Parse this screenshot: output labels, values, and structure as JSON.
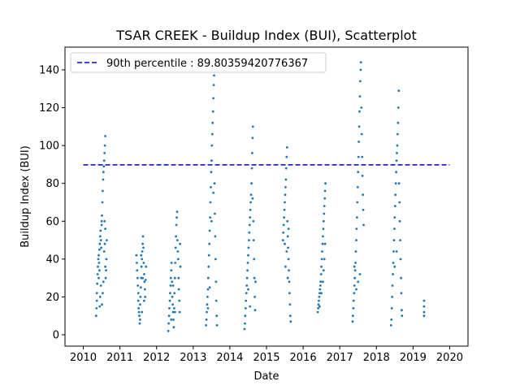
{
  "chart_data": {
    "type": "scatter",
    "title": "TSAR CREEK - Buildup Index (BUI), Scatterplot",
    "xlabel": "Date",
    "ylabel": "Buildup Index (BUI)",
    "xlim": [
      2009.5,
      2020.5
    ],
    "ylim": [
      -6,
      152
    ],
    "x_ticks": [
      "2010",
      "2011",
      "2012",
      "2013",
      "2014",
      "2015",
      "2016",
      "2017",
      "2018",
      "2019",
      "2020"
    ],
    "y_ticks": [
      0,
      20,
      40,
      60,
      80,
      100,
      120,
      140
    ],
    "grid": false,
    "legend_position": "top-left",
    "series_color": "#1f77b4",
    "reference_line": {
      "label": "90th percentile : 89.80359420776367",
      "value": 89.80359420776367,
      "color": "#0000cd",
      "style": "dashed"
    },
    "series": [
      {
        "points": [
          [
            2010.35,
            10
          ],
          [
            2010.36,
            14
          ],
          [
            2010.37,
            18
          ],
          [
            2010.37,
            22
          ],
          [
            2010.38,
            27
          ],
          [
            2010.39,
            32
          ],
          [
            2010.4,
            36
          ],
          [
            2010.41,
            40
          ],
          [
            2010.42,
            42
          ],
          [
            2010.43,
            38
          ],
          [
            2010.44,
            45
          ],
          [
            2010.45,
            48
          ],
          [
            2010.46,
            52
          ],
          [
            2010.47,
            55
          ],
          [
            2010.48,
            50
          ],
          [
            2010.49,
            46
          ],
          [
            2010.5,
            58
          ],
          [
            2010.5,
            60
          ],
          [
            2010.51,
            63
          ],
          [
            2010.52,
            70
          ],
          [
            2010.53,
            76
          ],
          [
            2010.54,
            82
          ],
          [
            2010.55,
            86
          ],
          [
            2010.56,
            89
          ],
          [
            2010.57,
            92
          ],
          [
            2010.58,
            96
          ],
          [
            2010.59,
            100
          ],
          [
            2010.6,
            105
          ],
          [
            2010.58,
            60
          ],
          [
            2010.59,
            48
          ],
          [
            2010.6,
            36
          ],
          [
            2010.61,
            30
          ],
          [
            2010.62,
            34
          ],
          [
            2010.63,
            40
          ],
          [
            2010.64,
            50
          ],
          [
            2010.6,
            56
          ],
          [
            2010.57,
            44
          ],
          [
            2010.55,
            28
          ],
          [
            2010.53,
            22
          ],
          [
            2010.51,
            16
          ],
          [
            2010.48,
            26
          ],
          [
            2010.46,
            20
          ],
          [
            2010.44,
            34
          ],
          [
            2010.42,
            30
          ],
          [
            2010.45,
            15
          ],
          [
            2011.45,
            42
          ],
          [
            2011.46,
            38
          ],
          [
            2011.47,
            34
          ],
          [
            2011.48,
            30
          ],
          [
            2011.49,
            26
          ],
          [
            2011.5,
            22
          ],
          [
            2011.5,
            18
          ],
          [
            2011.51,
            14
          ],
          [
            2011.52,
            12
          ],
          [
            2011.53,
            10
          ],
          [
            2011.54,
            6
          ],
          [
            2011.55,
            16
          ],
          [
            2011.56,
            20
          ],
          [
            2011.57,
            25
          ],
          [
            2011.58,
            30
          ],
          [
            2011.59,
            36
          ],
          [
            2011.6,
            40
          ],
          [
            2011.61,
            44
          ],
          [
            2011.62,
            48
          ],
          [
            2011.63,
            52
          ],
          [
            2011.64,
            46
          ],
          [
            2011.65,
            38
          ],
          [
            2011.66,
            32
          ],
          [
            2011.67,
            28
          ],
          [
            2011.68,
            24
          ],
          [
            2011.69,
            20
          ],
          [
            2011.7,
            29
          ],
          [
            2011.71,
            36
          ],
          [
            2011.66,
            18
          ],
          [
            2011.6,
            12
          ],
          [
            2011.55,
            8
          ],
          [
            2011.58,
            42
          ],
          [
            2011.62,
            30
          ],
          [
            2012.32,
            2
          ],
          [
            2012.33,
            6
          ],
          [
            2012.34,
            10
          ],
          [
            2012.35,
            14
          ],
          [
            2012.36,
            18
          ],
          [
            2012.37,
            22
          ],
          [
            2012.38,
            26
          ],
          [
            2012.39,
            30
          ],
          [
            2012.4,
            34
          ],
          [
            2012.41,
            38
          ],
          [
            2012.42,
            28
          ],
          [
            2012.43,
            20
          ],
          [
            2012.44,
            16
          ],
          [
            2012.45,
            12
          ],
          [
            2012.46,
            8
          ],
          [
            2012.47,
            4
          ],
          [
            2012.48,
            14
          ],
          [
            2012.49,
            22
          ],
          [
            2012.5,
            30
          ],
          [
            2012.51,
            38
          ],
          [
            2012.52,
            46
          ],
          [
            2012.53,
            52
          ],
          [
            2012.54,
            58
          ],
          [
            2012.55,
            62
          ],
          [
            2012.56,
            65
          ],
          [
            2012.57,
            50
          ],
          [
            2012.58,
            44
          ],
          [
            2012.59,
            40
          ],
          [
            2012.6,
            30
          ],
          [
            2012.61,
            24
          ],
          [
            2012.62,
            18
          ],
          [
            2012.63,
            12
          ],
          [
            2012.64,
            48
          ],
          [
            2012.65,
            36
          ],
          [
            2012.5,
            12
          ],
          [
            2012.45,
            26
          ],
          [
            2012.4,
            8
          ],
          [
            2013.35,
            5
          ],
          [
            2013.36,
            8
          ],
          [
            2013.37,
            12
          ],
          [
            2013.38,
            16
          ],
          [
            2013.39,
            20
          ],
          [
            2013.4,
            24
          ],
          [
            2013.41,
            30
          ],
          [
            2013.42,
            36
          ],
          [
            2013.43,
            42
          ],
          [
            2013.44,
            48
          ],
          [
            2013.45,
            55
          ],
          [
            2013.46,
            62
          ],
          [
            2013.47,
            70
          ],
          [
            2013.48,
            78
          ],
          [
            2013.49,
            86
          ],
          [
            2013.5,
            92
          ],
          [
            2013.51,
            100
          ],
          [
            2013.52,
            106
          ],
          [
            2013.53,
            112
          ],
          [
            2013.54,
            118
          ],
          [
            2013.55,
            125
          ],
          [
            2013.56,
            132
          ],
          [
            2013.57,
            137
          ],
          [
            2013.58,
            80
          ],
          [
            2013.59,
            64
          ],
          [
            2013.6,
            52
          ],
          [
            2013.61,
            40
          ],
          [
            2013.62,
            28
          ],
          [
            2013.63,
            18
          ],
          [
            2013.64,
            10
          ],
          [
            2013.65,
            5
          ],
          [
            2013.55,
            75
          ],
          [
            2013.5,
            60
          ],
          [
            2013.45,
            25
          ],
          [
            2013.4,
            14
          ],
          [
            2014.4,
            3
          ],
          [
            2014.41,
            6
          ],
          [
            2014.42,
            10
          ],
          [
            2014.43,
            14
          ],
          [
            2014.44,
            18
          ],
          [
            2014.45,
            22
          ],
          [
            2014.46,
            26
          ],
          [
            2014.47,
            30
          ],
          [
            2014.48,
            34
          ],
          [
            2014.49,
            38
          ],
          [
            2014.5,
            42
          ],
          [
            2014.51,
            46
          ],
          [
            2014.52,
            50
          ],
          [
            2014.53,
            54
          ],
          [
            2014.54,
            58
          ],
          [
            2014.55,
            62
          ],
          [
            2014.56,
            66
          ],
          [
            2014.57,
            70
          ],
          [
            2014.58,
            74
          ],
          [
            2014.59,
            80
          ],
          [
            2014.6,
            88
          ],
          [
            2014.61,
            96
          ],
          [
            2014.62,
            104
          ],
          [
            2014.63,
            110
          ],
          [
            2014.64,
            60
          ],
          [
            2014.65,
            50
          ],
          [
            2014.66,
            40
          ],
          [
            2014.67,
            30
          ],
          [
            2014.68,
            20
          ],
          [
            2014.69,
            13
          ],
          [
            2014.7,
            28
          ],
          [
            2014.55,
            15
          ],
          [
            2014.5,
            24
          ],
          [
            2014.62,
            72
          ],
          [
            2015.45,
            50
          ],
          [
            2015.46,
            54
          ],
          [
            2015.47,
            58
          ],
          [
            2015.48,
            62
          ],
          [
            2015.49,
            66
          ],
          [
            2015.5,
            70
          ],
          [
            2015.51,
            74
          ],
          [
            2015.52,
            78
          ],
          [
            2015.53,
            82
          ],
          [
            2015.54,
            88
          ],
          [
            2015.55,
            94
          ],
          [
            2015.56,
            99
          ],
          [
            2015.57,
            60
          ],
          [
            2015.58,
            52
          ],
          [
            2015.59,
            46
          ],
          [
            2015.6,
            40
          ],
          [
            2015.61,
            34
          ],
          [
            2015.62,
            28
          ],
          [
            2015.63,
            22
          ],
          [
            2015.64,
            16
          ],
          [
            2015.65,
            10
          ],
          [
            2015.66,
            7
          ],
          [
            2015.6,
            56
          ],
          [
            2015.55,
            44
          ],
          [
            2015.5,
            48
          ],
          [
            2015.52,
            36
          ],
          [
            2015.58,
            30
          ],
          [
            2016.4,
            12
          ],
          [
            2016.41,
            14
          ],
          [
            2016.42,
            16
          ],
          [
            2016.43,
            18
          ],
          [
            2016.44,
            20
          ],
          [
            2016.45,
            22
          ],
          [
            2016.46,
            24
          ],
          [
            2016.47,
            26
          ],
          [
            2016.48,
            28
          ],
          [
            2016.49,
            32
          ],
          [
            2016.5,
            36
          ],
          [
            2016.51,
            40
          ],
          [
            2016.52,
            44
          ],
          [
            2016.53,
            48
          ],
          [
            2016.54,
            52
          ],
          [
            2016.55,
            56
          ],
          [
            2016.56,
            60
          ],
          [
            2016.57,
            64
          ],
          [
            2016.58,
            68
          ],
          [
            2016.59,
            72
          ],
          [
            2016.6,
            76
          ],
          [
            2016.61,
            80
          ],
          [
            2016.6,
            48
          ],
          [
            2016.58,
            40
          ],
          [
            2016.56,
            34
          ],
          [
            2016.54,
            28
          ],
          [
            2016.5,
            22
          ],
          [
            2016.45,
            15
          ],
          [
            2017.35,
            7
          ],
          [
            2017.36,
            10
          ],
          [
            2017.37,
            14
          ],
          [
            2017.38,
            18
          ],
          [
            2017.39,
            22
          ],
          [
            2017.4,
            26
          ],
          [
            2017.41,
            30
          ],
          [
            2017.42,
            34
          ],
          [
            2017.43,
            38
          ],
          [
            2017.44,
            44
          ],
          [
            2017.45,
            50
          ],
          [
            2017.46,
            56
          ],
          [
            2017.47,
            62
          ],
          [
            2017.48,
            70
          ],
          [
            2017.49,
            78
          ],
          [
            2017.5,
            86
          ],
          [
            2017.51,
            94
          ],
          [
            2017.52,
            102
          ],
          [
            2017.53,
            110
          ],
          [
            2017.54,
            118
          ],
          [
            2017.55,
            126
          ],
          [
            2017.56,
            134
          ],
          [
            2017.57,
            140
          ],
          [
            2017.58,
            144
          ],
          [
            2017.59,
            120
          ],
          [
            2017.6,
            106
          ],
          [
            2017.61,
            94
          ],
          [
            2017.62,
            84
          ],
          [
            2017.63,
            74
          ],
          [
            2017.64,
            66
          ],
          [
            2017.65,
            58
          ],
          [
            2017.55,
            32
          ],
          [
            2017.5,
            28
          ],
          [
            2017.45,
            24
          ],
          [
            2017.4,
            36
          ],
          [
            2018.4,
            5
          ],
          [
            2018.41,
            8
          ],
          [
            2018.42,
            14
          ],
          [
            2018.43,
            20
          ],
          [
            2018.44,
            26
          ],
          [
            2018.45,
            32
          ],
          [
            2018.46,
            38
          ],
          [
            2018.47,
            44
          ],
          [
            2018.48,
            50
          ],
          [
            2018.49,
            56
          ],
          [
            2018.5,
            62
          ],
          [
            2018.51,
            68
          ],
          [
            2018.52,
            74
          ],
          [
            2018.53,
            80
          ],
          [
            2018.54,
            86
          ],
          [
            2018.55,
            92
          ],
          [
            2018.56,
            96
          ],
          [
            2018.57,
            100
          ],
          [
            2018.58,
            106
          ],
          [
            2018.59,
            112
          ],
          [
            2018.6,
            120
          ],
          [
            2018.61,
            129
          ],
          [
            2018.62,
            80
          ],
          [
            2018.63,
            70
          ],
          [
            2018.64,
            60
          ],
          [
            2018.65,
            50
          ],
          [
            2018.66,
            40
          ],
          [
            2018.67,
            30
          ],
          [
            2018.68,
            22
          ],
          [
            2018.69,
            13
          ],
          [
            2018.7,
            10
          ],
          [
            2018.55,
            44
          ],
          [
            2018.5,
            36
          ],
          [
            2019.3,
            10
          ],
          [
            2019.3,
            12
          ],
          [
            2019.3,
            15
          ],
          [
            2019.3,
            18
          ]
        ]
      }
    ]
  }
}
